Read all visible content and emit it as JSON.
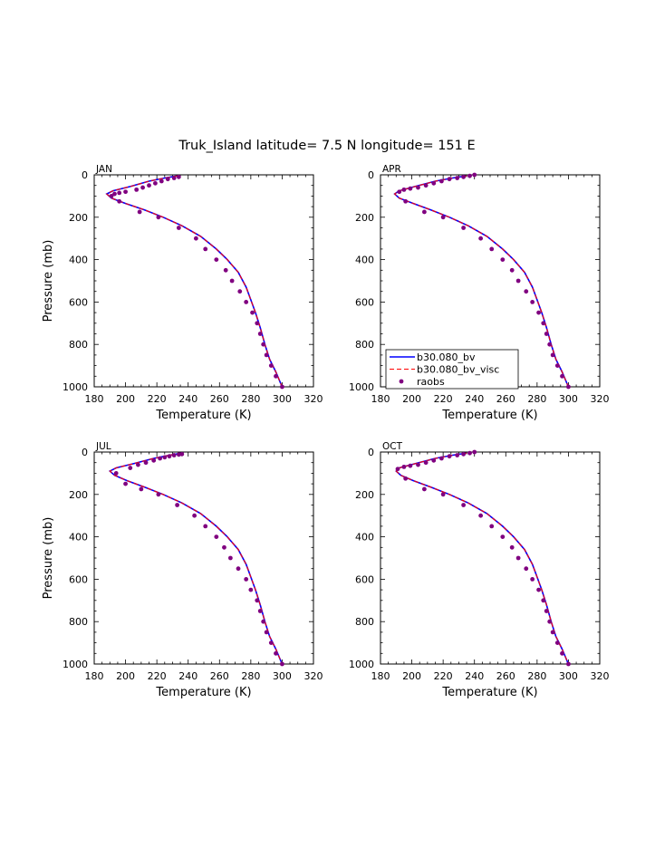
{
  "title": "Truk_Island  latitude= 7.5 N longitude= 151 E",
  "chart_data": [
    {
      "type": "line",
      "panel_label": "JAN",
      "xlabel": "Temperature (K)",
      "ylabel": "Pressure (mb)",
      "xlim": [
        180,
        320
      ],
      "ylim": [
        1000,
        0
      ],
      "x_ticks": [
        "180",
        "200",
        "220",
        "240",
        "260",
        "280",
        "300",
        "320"
      ],
      "y_ticks": [
        "0",
        "200",
        "400",
        "600",
        "800",
        "1000"
      ],
      "series": [
        {
          "name": "b30.080_bv",
          "color": "#0000ff",
          "style": "solid",
          "x": [
            233,
            225,
            215,
            203,
            192,
            188,
            191,
            200,
            212,
            224,
            236,
            248,
            258,
            265,
            272,
            277,
            280,
            283,
            286,
            289,
            292,
            296,
            300
          ],
          "y": [
            5,
            15,
            30,
            55,
            75,
            90,
            110,
            135,
            165,
            200,
            240,
            290,
            350,
            400,
            460,
            530,
            590,
            650,
            720,
            800,
            870,
            930,
            1000
          ]
        },
        {
          "name": "b30.080_bv_visc",
          "color": "#ff0000",
          "style": "dashed",
          "x": [
            233,
            225,
            215,
            203,
            192,
            188,
            191,
            200,
            212,
            224,
            236,
            248,
            258,
            265,
            272,
            277,
            280,
            283,
            286,
            289,
            292,
            296,
            300
          ],
          "y": [
            5,
            15,
            30,
            55,
            75,
            90,
            110,
            135,
            165,
            200,
            240,
            290,
            350,
            400,
            460,
            530,
            590,
            650,
            720,
            800,
            870,
            930,
            1000
          ]
        },
        {
          "name": "raobs",
          "color": "#800080",
          "style": "dots",
          "x": [
            234,
            231,
            227,
            223,
            219,
            215,
            211,
            207,
            200,
            196,
            193,
            191,
            196,
            209,
            221,
            234,
            245,
            251,
            258,
            264,
            268,
            273,
            277,
            281,
            284,
            286,
            288,
            290,
            293,
            296,
            300
          ],
          "y": [
            10,
            15,
            20,
            30,
            40,
            50,
            60,
            70,
            80,
            85,
            90,
            100,
            125,
            175,
            200,
            250,
            300,
            350,
            400,
            450,
            500,
            550,
            600,
            650,
            700,
            750,
            800,
            850,
            900,
            950,
            1000
          ]
        }
      ]
    },
    {
      "type": "line",
      "panel_label": "APR",
      "xlabel": "Temperature (K)",
      "ylabel": "",
      "xlim": [
        180,
        320
      ],
      "ylim": [
        1000,
        0
      ],
      "x_ticks": [
        "180",
        "200",
        "220",
        "240",
        "260",
        "280",
        "300",
        "320"
      ],
      "y_ticks": [
        "0",
        "200",
        "400",
        "600",
        "800",
        "1000"
      ],
      "series": [
        {
          "name": "b30.080_bv",
          "color": "#0000ff",
          "style": "solid",
          "x": [
            235,
            226,
            215,
            202,
            192,
            189,
            192,
            201,
            212,
            224,
            236,
            248,
            258,
            265,
            272,
            277,
            280,
            283,
            286,
            289,
            292,
            296,
            300
          ],
          "y": [
            5,
            15,
            30,
            55,
            75,
            90,
            110,
            135,
            165,
            200,
            240,
            290,
            350,
            400,
            460,
            530,
            590,
            650,
            720,
            800,
            870,
            930,
            1000
          ]
        },
        {
          "name": "b30.080_bv_visc",
          "color": "#ff0000",
          "style": "dashed",
          "x": [
            235,
            226,
            215,
            202,
            192,
            189,
            192,
            201,
            212,
            224,
            236,
            248,
            258,
            265,
            272,
            277,
            280,
            283,
            286,
            289,
            292,
            296,
            300
          ],
          "y": [
            5,
            15,
            30,
            55,
            75,
            90,
            110,
            135,
            165,
            200,
            240,
            290,
            350,
            400,
            460,
            530,
            590,
            650,
            720,
            800,
            870,
            930,
            1000
          ]
        },
        {
          "name": "raobs",
          "color": "#800080",
          "style": "dots",
          "x": [
            240,
            237,
            233,
            229,
            224,
            219,
            214,
            209,
            204,
            199,
            195,
            192,
            196,
            208,
            220,
            233,
            244,
            251,
            258,
            264,
            268,
            273,
            277,
            281,
            284,
            286,
            288,
            290,
            293,
            296,
            300
          ],
          "y": [
            0,
            5,
            10,
            15,
            20,
            30,
            40,
            50,
            60,
            65,
            70,
            80,
            125,
            175,
            200,
            250,
            300,
            350,
            400,
            450,
            500,
            550,
            600,
            650,
            700,
            750,
            800,
            850,
            900,
            950,
            1000
          ]
        }
      ]
    },
    {
      "type": "line",
      "panel_label": "JUL",
      "xlabel": "Temperature (K)",
      "ylabel": "Pressure (mb)",
      "xlim": [
        180,
        320
      ],
      "ylim": [
        1000,
        0
      ],
      "x_ticks": [
        "180",
        "200",
        "220",
        "240",
        "260",
        "280",
        "300",
        "320"
      ],
      "y_ticks": [
        "0",
        "200",
        "400",
        "600",
        "800",
        "1000"
      ],
      "series": [
        {
          "name": "b30.080_bv",
          "color": "#0000ff",
          "style": "solid",
          "x": [
            236,
            228,
            218,
            205,
            194,
            190,
            193,
            201,
            212,
            224,
            236,
            248,
            258,
            265,
            272,
            277,
            280,
            283,
            286,
            289,
            292,
            296,
            300
          ],
          "y": [
            5,
            15,
            30,
            55,
            75,
            90,
            110,
            135,
            165,
            200,
            240,
            290,
            350,
            400,
            460,
            530,
            590,
            650,
            720,
            800,
            870,
            930,
            1000
          ]
        },
        {
          "name": "b30.080_bv_visc",
          "color": "#ff0000",
          "style": "dashed",
          "x": [
            236,
            228,
            218,
            205,
            194,
            190,
            193,
            201,
            212,
            224,
            236,
            248,
            258,
            265,
            272,
            277,
            280,
            283,
            286,
            289,
            292,
            296,
            300
          ],
          "y": [
            5,
            15,
            30,
            55,
            75,
            90,
            110,
            135,
            165,
            200,
            240,
            290,
            350,
            400,
            460,
            530,
            590,
            650,
            720,
            800,
            870,
            930,
            1000
          ]
        },
        {
          "name": "raobs",
          "color": "#800080",
          "style": "dots",
          "x": [
            236,
            234,
            231,
            228,
            225,
            222,
            218,
            213,
            208,
            203,
            194,
            200,
            210,
            221,
            233,
            244,
            251,
            258,
            263,
            267,
            272,
            277,
            280,
            284,
            286,
            288,
            290,
            293,
            296,
            300
          ],
          "y": [
            10,
            12,
            15,
            20,
            25,
            30,
            40,
            50,
            60,
            75,
            100,
            150,
            175,
            200,
            250,
            300,
            350,
            400,
            450,
            500,
            550,
            600,
            650,
            700,
            750,
            800,
            850,
            900,
            950,
            1000
          ]
        }
      ]
    },
    {
      "type": "line",
      "panel_label": "OCT",
      "xlabel": "Temperature (K)",
      "ylabel": "",
      "xlim": [
        180,
        320
      ],
      "ylim": [
        1000,
        0
      ],
      "x_ticks": [
        "180",
        "200",
        "220",
        "240",
        "260",
        "280",
        "300",
        "320"
      ],
      "y_ticks": [
        "0",
        "200",
        "400",
        "600",
        "800",
        "1000"
      ],
      "series": [
        {
          "name": "b30.080_bv",
          "color": "#0000ff",
          "style": "solid",
          "x": [
            235,
            226,
            215,
            202,
            192,
            190,
            193,
            201,
            212,
            224,
            236,
            248,
            258,
            265,
            272,
            277,
            280,
            283,
            286,
            289,
            292,
            296,
            300
          ],
          "y": [
            5,
            15,
            30,
            55,
            75,
            90,
            110,
            135,
            165,
            200,
            240,
            290,
            350,
            400,
            460,
            530,
            590,
            650,
            720,
            800,
            870,
            930,
            1000
          ]
        },
        {
          "name": "b30.080_bv_visc",
          "color": "#ff0000",
          "style": "dashed",
          "x": [
            235,
            226,
            215,
            202,
            192,
            190,
            193,
            201,
            212,
            224,
            236,
            248,
            258,
            265,
            272,
            277,
            280,
            283,
            286,
            289,
            292,
            296,
            300
          ],
          "y": [
            5,
            15,
            30,
            55,
            75,
            90,
            110,
            135,
            165,
            200,
            240,
            290,
            350,
            400,
            460,
            530,
            590,
            650,
            720,
            800,
            870,
            930,
            1000
          ]
        },
        {
          "name": "raobs",
          "color": "#800080",
          "style": "dots",
          "x": [
            240,
            237,
            233,
            229,
            224,
            219,
            214,
            209,
            204,
            199,
            195,
            191,
            196,
            208,
            220,
            233,
            244,
            251,
            258,
            264,
            268,
            273,
            277,
            281,
            284,
            286,
            288,
            290,
            293,
            296,
            300
          ],
          "y": [
            0,
            5,
            10,
            15,
            20,
            30,
            40,
            50,
            60,
            65,
            70,
            80,
            125,
            175,
            200,
            250,
            300,
            350,
            400,
            450,
            500,
            550,
            600,
            650,
            700,
            750,
            800,
            850,
            900,
            950,
            1000
          ]
        }
      ]
    }
  ],
  "legend": {
    "panel": "APR",
    "placement": "bottom-left",
    "entries": [
      {
        "label": "b30.080_bv",
        "color": "#0000ff",
        "style": "solid"
      },
      {
        "label": "b30.080_bv_visc",
        "color": "#ff0000",
        "style": "dashed"
      },
      {
        "label": "raobs",
        "color": "#800080",
        "style": "dots"
      }
    ]
  }
}
